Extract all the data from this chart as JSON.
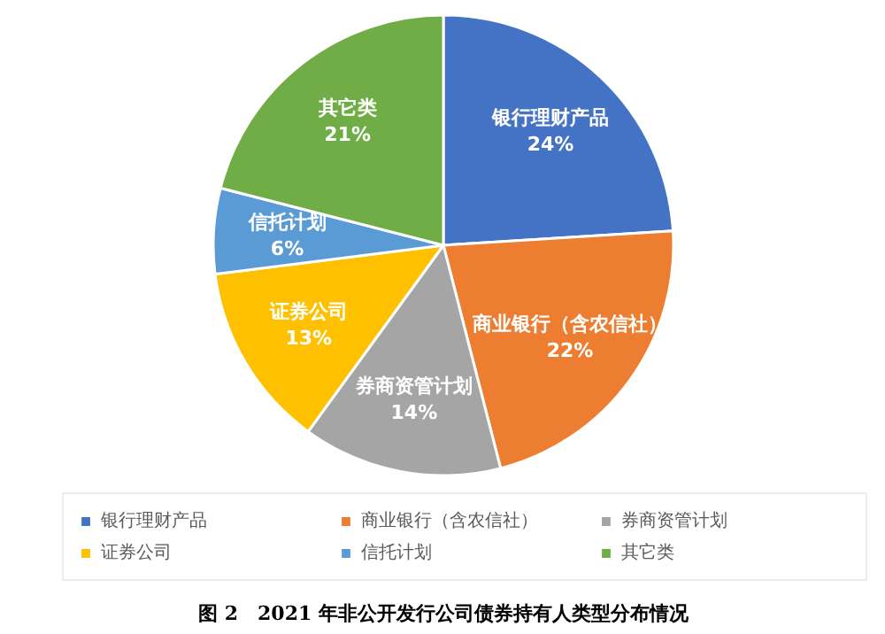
{
  "chart_data": {
    "type": "pie",
    "title": "图 2　2021 年非公开发行公司债券持有人类型分布情况",
    "categories": [
      "银行理财产品",
      "商业银行（含农信社）",
      "券商资管计划",
      "证券公司",
      "信托计划",
      "其它类"
    ],
    "values": [
      24,
      22,
      14,
      13,
      6,
      21
    ],
    "colors": [
      "#4472c4",
      "#ed7d31",
      "#a5a5a5",
      "#ffc000",
      "#5b9bd5",
      "#70ad47"
    ],
    "value_labels": [
      "24%",
      "22%",
      "14%",
      "13%",
      "6%",
      "21%"
    ],
    "legend": "bottom"
  }
}
